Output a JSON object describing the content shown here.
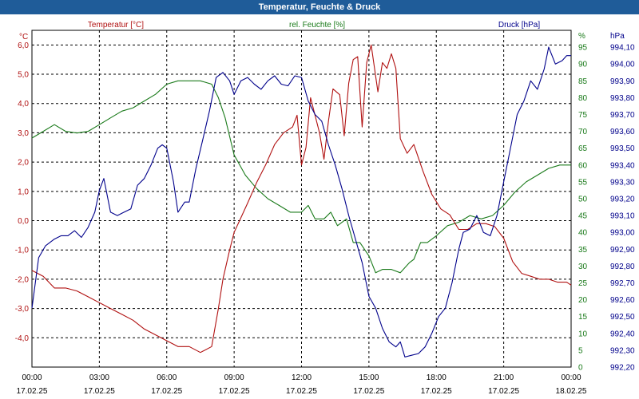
{
  "window": {
    "title": "Temperatur, Feuchte & Druck"
  },
  "colors": {
    "temperature": "#b01010",
    "humidity": "#1a7a1a",
    "pressure": "#00008b",
    "grid": "#000000",
    "title_bar": "#1f5c99"
  },
  "chart_data": {
    "type": "line",
    "title": "Temperatur, Feuchte & Druck",
    "grid": true,
    "x_ticks": [
      {
        "time": "00:00",
        "date": "17.02.25"
      },
      {
        "time": "03:00",
        "date": "17.02.25"
      },
      {
        "time": "06:00",
        "date": "17.02.25"
      },
      {
        "time": "09:00",
        "date": "17.02.25"
      },
      {
        "time": "12:00",
        "date": "17.02.25"
      },
      {
        "time": "15:00",
        "date": "17.02.25"
      },
      {
        "time": "18:00",
        "date": "17.02.25"
      },
      {
        "time": "21:00",
        "date": "17.02.25"
      },
      {
        "time": "00:00",
        "date": "18.02.25"
      }
    ],
    "xlim": [
      0,
      24
    ],
    "axes": {
      "temperature": {
        "unit": "°C",
        "ylim": [
          -5.0,
          6.5
        ],
        "ticks": [
          "6,0",
          "5,0",
          "4,0",
          "3,0",
          "2,0",
          "1,0",
          "0,0",
          "-1,0",
          "-2,0",
          "-3,0",
          "-4,0"
        ],
        "tick_values": [
          6,
          5,
          4,
          3,
          2,
          1,
          0,
          -1,
          -2,
          -3,
          -4
        ]
      },
      "humidity": {
        "unit": "%",
        "ylim": [
          0,
          100
        ],
        "ticks": [
          "95",
          "90",
          "85",
          "80",
          "75",
          "70",
          "65",
          "60",
          "55",
          "50",
          "45",
          "40",
          "35",
          "30",
          "25",
          "20",
          "15",
          "10",
          "5",
          "0"
        ],
        "tick_values": [
          95,
          90,
          85,
          80,
          75,
          70,
          65,
          60,
          55,
          50,
          45,
          40,
          35,
          30,
          25,
          20,
          15,
          10,
          5,
          0
        ]
      },
      "pressure": {
        "unit": "hPa",
        "ylim": [
          992.2,
          994.2
        ],
        "ticks": [
          "994,10",
          "994,00",
          "993,90",
          "993,80",
          "993,70",
          "993,60",
          "993,50",
          "993,40",
          "993,30",
          "993,20",
          "993,10",
          "993,00",
          "992,90",
          "992,80",
          "992,70",
          "992,60",
          "992,50",
          "992,40",
          "992,30",
          "992,20"
        ],
        "tick_values": [
          994.1,
          994.0,
          993.9,
          993.8,
          993.7,
          993.6,
          993.5,
          993.4,
          993.3,
          993.2,
          993.1,
          993.0,
          992.9,
          992.8,
          992.7,
          992.6,
          992.5,
          992.4,
          992.3,
          992.2
        ]
      }
    },
    "series": [
      {
        "name": "Temperatur [°C]",
        "axis": "temperature",
        "points": [
          [
            0,
            -1.7
          ],
          [
            0.5,
            -1.9
          ],
          [
            1,
            -2.3
          ],
          [
            1.5,
            -2.3
          ],
          [
            2,
            -2.4
          ],
          [
            2.5,
            -2.6
          ],
          [
            3,
            -2.8
          ],
          [
            3.5,
            -3.0
          ],
          [
            4,
            -3.2
          ],
          [
            4.5,
            -3.4
          ],
          [
            5,
            -3.7
          ],
          [
            5.5,
            -3.9
          ],
          [
            6,
            -4.1
          ],
          [
            6.5,
            -4.3
          ],
          [
            7,
            -4.3
          ],
          [
            7.5,
            -4.5
          ],
          [
            8,
            -4.3
          ],
          [
            8.3,
            -3.0
          ],
          [
            8.5,
            -2.0
          ],
          [
            8.8,
            -1.0
          ],
          [
            9,
            -0.4
          ],
          [
            9.3,
            0.1
          ],
          [
            9.6,
            0.6
          ],
          [
            10,
            1.3
          ],
          [
            10.4,
            1.9
          ],
          [
            10.8,
            2.6
          ],
          [
            11.2,
            3.0
          ],
          [
            11.6,
            3.2
          ],
          [
            11.8,
            3.6
          ],
          [
            12,
            1.9
          ],
          [
            12.2,
            2.5
          ],
          [
            12.4,
            4.2
          ],
          [
            12.6,
            3.6
          ],
          [
            12.8,
            3.0
          ],
          [
            13,
            2.1
          ],
          [
            13.2,
            3.4
          ],
          [
            13.4,
            4.5
          ],
          [
            13.7,
            4.3
          ],
          [
            13.9,
            2.9
          ],
          [
            14.1,
            4.7
          ],
          [
            14.3,
            5.5
          ],
          [
            14.5,
            5.6
          ],
          [
            14.7,
            3.2
          ],
          [
            14.9,
            5.4
          ],
          [
            15.1,
            6.0
          ],
          [
            15.4,
            4.4
          ],
          [
            15.6,
            5.4
          ],
          [
            15.8,
            5.2
          ],
          [
            16,
            5.7
          ],
          [
            16.2,
            5.2
          ],
          [
            16.4,
            2.8
          ],
          [
            16.7,
            2.3
          ],
          [
            17,
            2.6
          ],
          [
            17.4,
            1.7
          ],
          [
            17.8,
            0.9
          ],
          [
            18.2,
            0.4
          ],
          [
            18.6,
            0.2
          ],
          [
            19,
            -0.3
          ],
          [
            19.4,
            -0.3
          ],
          [
            19.8,
            -0.1
          ],
          [
            20.2,
            -0.1
          ],
          [
            20.6,
            -0.2
          ],
          [
            21,
            -0.6
          ],
          [
            21.4,
            -1.4
          ],
          [
            21.8,
            -1.8
          ],
          [
            22.2,
            -1.9
          ],
          [
            22.6,
            -2.0
          ],
          [
            23,
            -2.0
          ],
          [
            23.4,
            -2.1
          ],
          [
            23.8,
            -2.1
          ],
          [
            24,
            -2.2
          ]
        ]
      },
      {
        "name": "rel. Feuchte [%]",
        "axis": "humidity",
        "points": [
          [
            0,
            68
          ],
          [
            0.5,
            70
          ],
          [
            1,
            72
          ],
          [
            1.5,
            70
          ],
          [
            2,
            69.5
          ],
          [
            2.5,
            70
          ],
          [
            3,
            72
          ],
          [
            3.5,
            74
          ],
          [
            4,
            76
          ],
          [
            4.5,
            77
          ],
          [
            5,
            79
          ],
          [
            5.5,
            81
          ],
          [
            6,
            84
          ],
          [
            6.5,
            85
          ],
          [
            7,
            85
          ],
          [
            7.5,
            85
          ],
          [
            8,
            84
          ],
          [
            8.3,
            80
          ],
          [
            8.6,
            74
          ],
          [
            9,
            63
          ],
          [
            9.5,
            57
          ],
          [
            10,
            53
          ],
          [
            10.5,
            50
          ],
          [
            11,
            48
          ],
          [
            11.5,
            46
          ],
          [
            12,
            46
          ],
          [
            12.3,
            48
          ],
          [
            12.6,
            44
          ],
          [
            13,
            44
          ],
          [
            13.3,
            46
          ],
          [
            13.6,
            42
          ],
          [
            14,
            44
          ],
          [
            14.3,
            37
          ],
          [
            14.6,
            37
          ],
          [
            15,
            33
          ],
          [
            15.3,
            28
          ],
          [
            15.6,
            29
          ],
          [
            16,
            29
          ],
          [
            16.4,
            28
          ],
          [
            16.8,
            31
          ],
          [
            17,
            32
          ],
          [
            17.3,
            37
          ],
          [
            17.6,
            37
          ],
          [
            18,
            39
          ],
          [
            18.5,
            42
          ],
          [
            19,
            43
          ],
          [
            19.5,
            45
          ],
          [
            20,
            44
          ],
          [
            20.5,
            45
          ],
          [
            21,
            48
          ],
          [
            21.5,
            52
          ],
          [
            22,
            55
          ],
          [
            22.5,
            57
          ],
          [
            23,
            59
          ],
          [
            23.5,
            60
          ],
          [
            24,
            60
          ]
        ]
      },
      {
        "name": "Druck [hPa]",
        "axis": "pressure",
        "points": [
          [
            0,
            992.55
          ],
          [
            0.3,
            992.85
          ],
          [
            0.6,
            992.92
          ],
          [
            1,
            992.96
          ],
          [
            1.3,
            992.98
          ],
          [
            1.6,
            992.98
          ],
          [
            1.9,
            993.01
          ],
          [
            2.2,
            992.97
          ],
          [
            2.5,
            993.03
          ],
          [
            2.8,
            993.12
          ],
          [
            3.0,
            993.25
          ],
          [
            3.2,
            993.32
          ],
          [
            3.5,
            993.12
          ],
          [
            3.8,
            993.1
          ],
          [
            4.1,
            993.12
          ],
          [
            4.4,
            993.14
          ],
          [
            4.7,
            993.28
          ],
          [
            5.0,
            993.32
          ],
          [
            5.3,
            993.4
          ],
          [
            5.6,
            993.5
          ],
          [
            5.8,
            993.52
          ],
          [
            6.0,
            993.5
          ],
          [
            6.3,
            993.3
          ],
          [
            6.5,
            993.12
          ],
          [
            6.8,
            993.18
          ],
          [
            7.0,
            993.18
          ],
          [
            7.3,
            993.38
          ],
          [
            7.6,
            993.55
          ],
          [
            7.9,
            993.72
          ],
          [
            8.2,
            993.92
          ],
          [
            8.5,
            993.95
          ],
          [
            8.8,
            993.9
          ],
          [
            9.0,
            993.82
          ],
          [
            9.3,
            993.9
          ],
          [
            9.6,
            993.92
          ],
          [
            9.9,
            993.88
          ],
          [
            10.2,
            993.85
          ],
          [
            10.5,
            993.9
          ],
          [
            10.8,
            993.93
          ],
          [
            11.1,
            993.88
          ],
          [
            11.4,
            993.87
          ],
          [
            11.7,
            993.93
          ],
          [
            12.0,
            993.92
          ],
          [
            12.3,
            993.78
          ],
          [
            12.6,
            993.7
          ],
          [
            12.9,
            993.66
          ],
          [
            13.2,
            993.52
          ],
          [
            13.5,
            993.4
          ],
          [
            13.8,
            993.26
          ],
          [
            14.1,
            993.1
          ],
          [
            14.4,
            992.96
          ],
          [
            14.7,
            992.82
          ],
          [
            15.0,
            992.62
          ],
          [
            15.3,
            992.55
          ],
          [
            15.6,
            992.43
          ],
          [
            15.9,
            992.35
          ],
          [
            16.2,
            992.32
          ],
          [
            16.4,
            992.35
          ],
          [
            16.6,
            992.26
          ],
          [
            16.9,
            992.27
          ],
          [
            17.2,
            992.28
          ],
          [
            17.5,
            992.32
          ],
          [
            17.8,
            992.4
          ],
          [
            18.1,
            992.5
          ],
          [
            18.4,
            992.55
          ],
          [
            18.7,
            992.7
          ],
          [
            19.0,
            992.9
          ],
          [
            19.2,
            993.0
          ],
          [
            19.5,
            993.02
          ],
          [
            19.8,
            993.1
          ],
          [
            20.1,
            993.0
          ],
          [
            20.4,
            992.98
          ],
          [
            20.7,
            993.1
          ],
          [
            21.0,
            993.3
          ],
          [
            21.3,
            993.5
          ],
          [
            21.6,
            993.7
          ],
          [
            21.9,
            993.78
          ],
          [
            22.2,
            993.9
          ],
          [
            22.5,
            993.85
          ],
          [
            22.8,
            993.97
          ],
          [
            23.0,
            994.1
          ],
          [
            23.3,
            994.0
          ],
          [
            23.6,
            994.02
          ],
          [
            23.8,
            994.05
          ],
          [
            24,
            994.05
          ]
        ]
      }
    ]
  }
}
